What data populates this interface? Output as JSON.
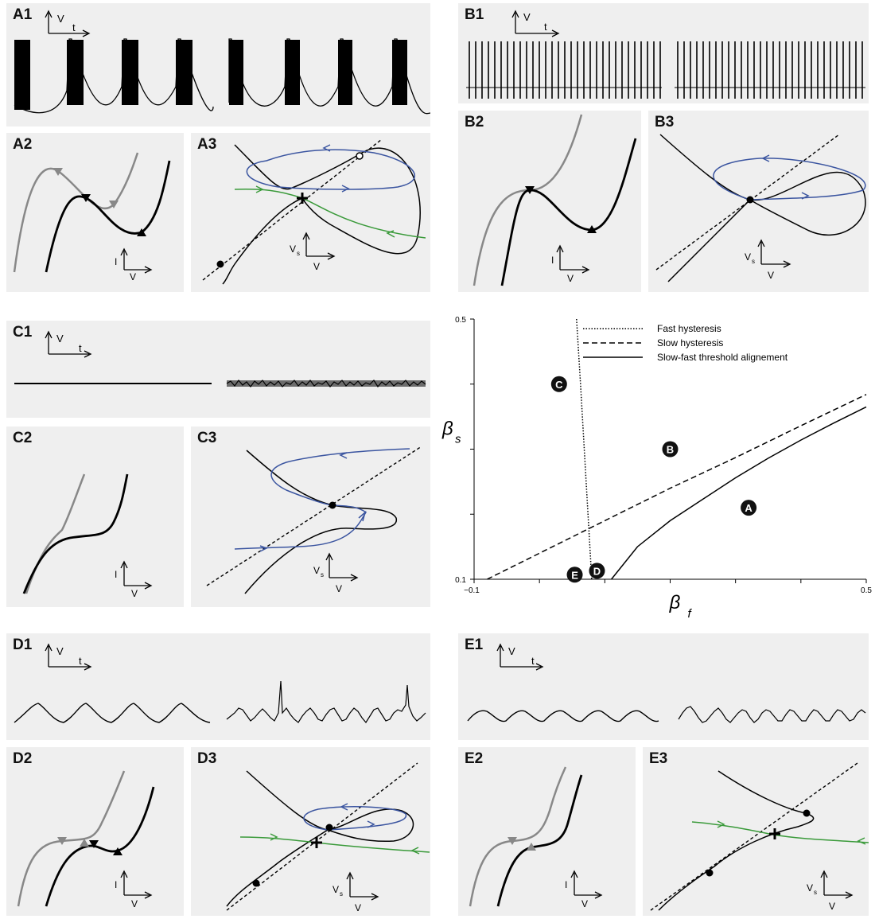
{
  "panels": {
    "A1": "A1",
    "A2": "A2",
    "A3": "A3",
    "B1": "B1",
    "B2": "B2",
    "B3": "B3",
    "C1": "C1",
    "C2": "C2",
    "C3": "C3",
    "D1": "D1",
    "D2": "D2",
    "D3": "D3",
    "E1": "E1",
    "E2": "E2",
    "E3": "E3"
  },
  "axes": {
    "voltage": "V",
    "time": "t",
    "current": "I",
    "slow_voltage": "V",
    "slow_subscript": "s"
  },
  "colors": {
    "limit_cycle": "#3b55a0",
    "separatrix": "#3a9a3a",
    "gray_curve": "#888888",
    "panel_bg": "#efefef"
  },
  "chart_data": {
    "type": "line",
    "xlabel": "β",
    "xlabel_sub": "f",
    "ylabel": "β",
    "ylabel_sub": "s",
    "xlim": [
      -0.1,
      0.5
    ],
    "ylim": [
      0.1,
      0.5
    ],
    "xticks": [
      "−0.1",
      "0.5"
    ],
    "yticks": [
      "0.1",
      "0.5"
    ],
    "legend_position": "top-right",
    "series": [
      {
        "name": "Fast hysteresis",
        "style": "dotted",
        "x": [
          0.0568,
          0.0628,
          0.0685,
          0.0743,
          0.08
        ],
        "y": [
          0.5,
          0.4,
          0.3,
          0.2,
          0.1
        ]
      },
      {
        "name": "Slow hysteresis",
        "style": "dashed",
        "x": [
          -0.08,
          0.0,
          0.1,
          0.2,
          0.3,
          0.4,
          0.5
        ],
        "y": [
          0.1,
          0.14,
          0.19,
          0.24,
          0.287,
          0.336,
          0.384
        ]
      },
      {
        "name": "Slow-fast threshold alignement",
        "style": "solid",
        "x": [
          0.11,
          0.15,
          0.2,
          0.25,
          0.3,
          0.35,
          0.4,
          0.45,
          0.5
        ],
        "y": [
          0.1,
          0.15,
          0.19,
          0.223,
          0.256,
          0.286,
          0.314,
          0.34,
          0.365
        ]
      }
    ],
    "regions": [
      {
        "label": "A",
        "x": 0.32,
        "y": 0.21
      },
      {
        "label": "B",
        "x": 0.2,
        "y": 0.3
      },
      {
        "label": "C",
        "x": 0.03,
        "y": 0.4
      },
      {
        "label": "D",
        "x": 0.088,
        "y": 0.113
      },
      {
        "label": "E",
        "x": 0.054,
        "y": 0.107
      }
    ]
  }
}
